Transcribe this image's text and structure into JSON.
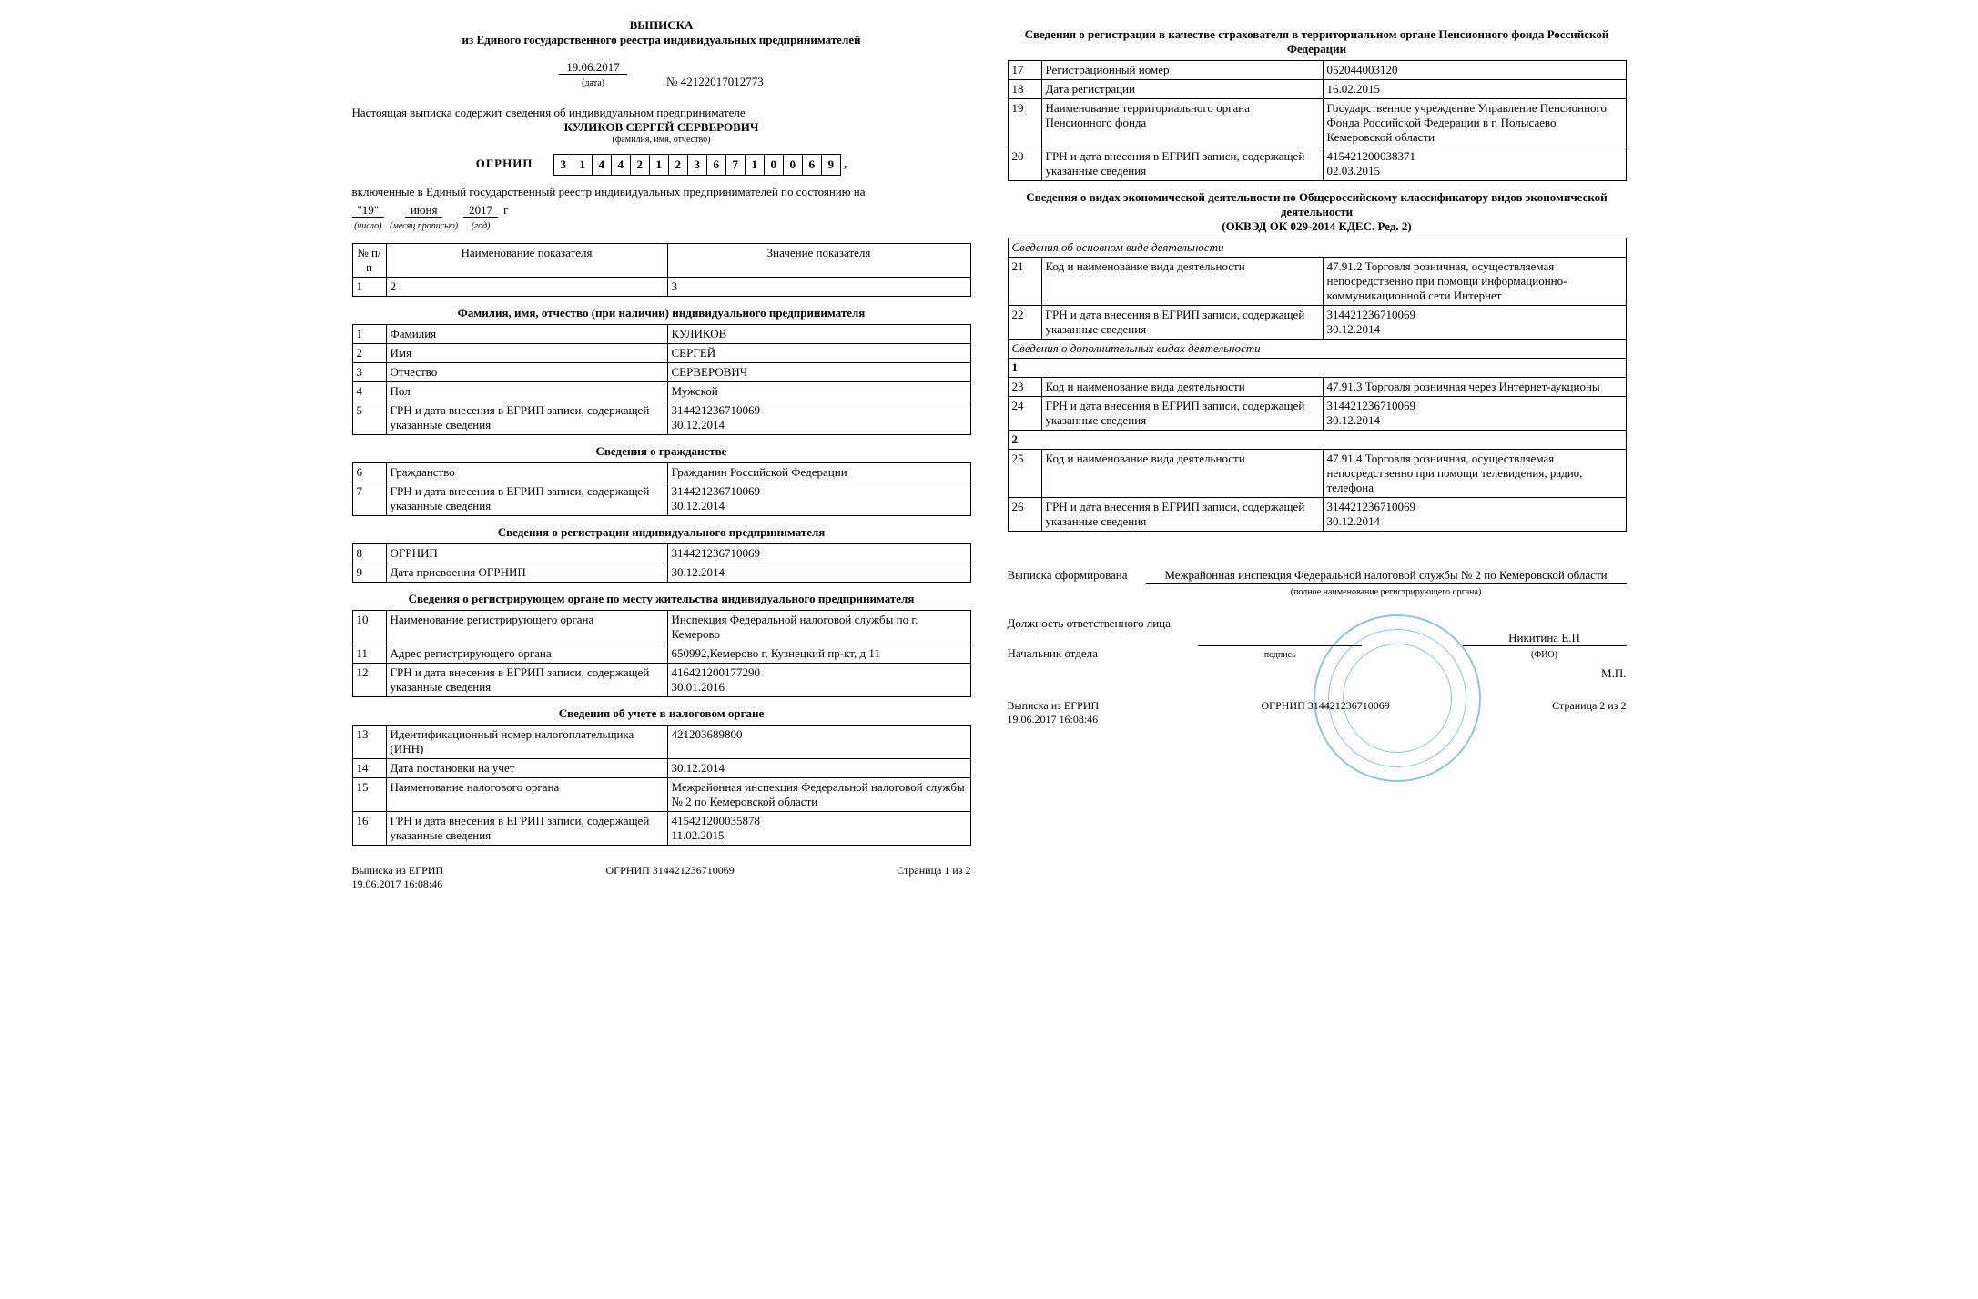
{
  "header": {
    "title": "ВЫПИСКА",
    "subtitle": "из Единого государственного реестра индивидуальных предпринимателей",
    "date": "19.06.2017",
    "date_label": "(дата)",
    "doc_number": "№ 42122017012773",
    "intro": "Настоящая выписка содержит сведения об индивидуальном предпринимателе",
    "full_name": "КУЛИКОВ СЕРГЕЙ СЕРВЕРОВИЧ",
    "name_label": "(фамилия, имя, отчество)",
    "ogrnip_label": "ОГРНИП",
    "ogrnip_digits": [
      "3",
      "1",
      "4",
      "4",
      "2",
      "1",
      "2",
      "3",
      "6",
      "7",
      "1",
      "0",
      "0",
      "6",
      "9"
    ],
    "included_text": "включенные в Единый государственный реестр индивидуальных предпринимателей по состоянию на",
    "d_day": "\"19\"",
    "d_day_label": "(число)",
    "d_month": "июня",
    "d_month_label": "(месяц прописью)",
    "d_year": "2017",
    "d_year_label": "(год)",
    "d_year_suffix": "г"
  },
  "columns": {
    "c1": "№ п/п",
    "c2": "Наименование показателя",
    "c3": "Значение показателя",
    "n1": "1",
    "n2": "2",
    "n3": "3"
  },
  "s1": {
    "title": "Фамилия, имя, отчество (при наличии) индивидуального предпринимателя",
    "r1n": "1",
    "r1a": "Фамилия",
    "r1b": "КУЛИКОВ",
    "r2n": "2",
    "r2a": "Имя",
    "r2b": "СЕРГЕЙ",
    "r3n": "3",
    "r3a": "Отчество",
    "r3b": "СЕРВЕРОВИЧ",
    "r4n": "4",
    "r4a": "Пол",
    "r4b": "Мужской",
    "r5n": "5",
    "r5a": "ГРН и дата внесения в ЕГРИП записи, содержащей указанные сведения",
    "r5b": "314421236710069\n30.12.2014"
  },
  "s2": {
    "title": "Сведения о гражданстве",
    "r1n": "6",
    "r1a": "Гражданство",
    "r1b": "Гражданин Российской Федерации",
    "r2n": "7",
    "r2a": "ГРН и дата внесения в ЕГРИП записи, содержащей указанные сведения",
    "r2b": "314421236710069\n30.12.2014"
  },
  "s3": {
    "title": "Сведения о регистрации индивидуального предпринимателя",
    "r1n": "8",
    "r1a": "ОГРНИП",
    "r1b": "314421236710069",
    "r2n": "9",
    "r2a": "Дата присвоения ОГРНИП",
    "r2b": "30.12.2014"
  },
  "s4": {
    "title": "Сведения о регистрирующем органе по месту жительства индивидуального предпринимателя",
    "r1n": "10",
    "r1a": "Наименование регистрирующего органа",
    "r1b": "Инспекция Федеральной налоговой службы по г. Кемерово",
    "r2n": "11",
    "r2a": "Адрес регистрирующего органа",
    "r2b": "650992,Кемерово г, Кузнецкий пр-кт, д 11",
    "r3n": "12",
    "r3a": "ГРН и дата внесения в ЕГРИП записи, содержащей указанные сведения",
    "r3b": "416421200177290\n30.01.2016"
  },
  "s5": {
    "title": "Сведения об учете в налоговом органе",
    "r1n": "13",
    "r1a": "Идентификационный номер налогоплательщика (ИНН)",
    "r1b": "421203689800",
    "r2n": "14",
    "r2a": "Дата постановки на учет",
    "r2b": "30.12.2014",
    "r3n": "15",
    "r3a": "Наименование налогового органа",
    "r3b": "Межрайонная инспекция Федеральной налоговой службы № 2 по Кемеровской области",
    "r4n": "16",
    "r4a": "ГРН и дата внесения в ЕГРИП записи, содержащей указанные сведения",
    "r4b": "415421200035878\n11.02.2015"
  },
  "s6": {
    "title": "Сведения о регистрации в качестве страхователя в территориальном органе Пенсионного фонда Российской Федерации",
    "r1n": "17",
    "r1a": "Регистрационный номер",
    "r1b": "052044003120",
    "r2n": "18",
    "r2a": "Дата регистрации",
    "r2b": "16.02.2015",
    "r3n": "19",
    "r3a": "Наименование территориального органа Пенсионного фонда",
    "r3b": "Государственное учреждение Управление Пенсионного Фонда Российской Федерации в г. Полысаево Кемеровской области",
    "r4n": "20",
    "r4a": "ГРН и дата внесения в ЕГРИП записи, содержащей указанные сведения",
    "r4b": "415421200038371\n02.03.2015"
  },
  "s7": {
    "title": "Сведения о видах экономической деятельности по Общероссийскому классификатору видов экономической деятельности\n(ОКВЭД ОК 029-2014 КДЕС. Ред. 2)",
    "sub_main": "Сведения об основном виде деятельности",
    "r1n": "21",
    "r1a": "Код и наименование вида деятельности",
    "r1b": "47.91.2 Торговля розничная, осуществляемая непосредственно при помощи информационно-коммуникационной сети Интернет",
    "r2n": "22",
    "r2a": "ГРН и дата внесения в ЕГРИП записи, содержащей указанные сведения",
    "r2b": "314421236710069\n30.12.2014",
    "sub_add": "Сведения о дополнительных видах деятельности",
    "n1": "1",
    "r3n": "23",
    "r3a": "Код и наименование вида деятельности",
    "r3b": "47.91.3 Торговля розничная через Интернет-аукционы",
    "r4n": "24",
    "r4a": "ГРН и дата внесения в ЕГРИП записи, содержащей указанные сведения",
    "r4b": "314421236710069\n30.12.2014",
    "n2": "2",
    "r5n": "25",
    "r5a": "Код и наименование вида деятельности",
    "r5b": "47.91.4 Торговля розничная, осуществляемая непосредственно при помощи телевидения, радио, телефона",
    "r6n": "26",
    "r6a": "ГРН и дата внесения в ЕГРИП записи, содержащей указанные сведения",
    "r6b": "314421236710069\n30.12.2014"
  },
  "signature": {
    "formed_label": "Выписка сформирована",
    "formed_by": "Межрайонная инспекция Федеральной налоговой службы № 2 по Кемеровской области",
    "formed_sub": "(полное наименование регистрирующего органа)",
    "position_label": "Должность ответственного лица",
    "position": "Начальник отдела",
    "sign_label": "подпись",
    "mp": "М.П.",
    "fio": "Никитина Е.П",
    "fio_label": "(ФИО)"
  },
  "footer": {
    "left": "Выписка из ЕГРИП",
    "left2": "19.06.2017 16:08:46",
    "center": "ОГРНИП 314421236710069",
    "right_p1": "Страница 1 из 2",
    "right_p2": "Страница 2 из 2"
  }
}
